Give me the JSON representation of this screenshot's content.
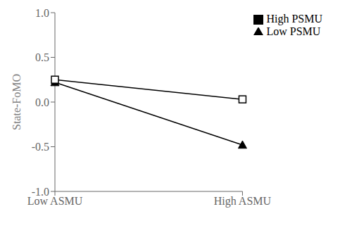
{
  "chart_data": {
    "type": "line",
    "categories": [
      "Low ASMU",
      "High ASMU"
    ],
    "series": [
      {
        "name": "Low PSMU",
        "color": "#000000",
        "marker": "triangle",
        "values": [
          0.22,
          -0.48
        ]
      },
      {
        "name": "High PSMU",
        "color": "#000000",
        "marker": "square",
        "values": [
          0.25,
          0.03
        ]
      }
    ],
    "ylabel": "State-FoMO",
    "ylim": [
      -1.0,
      1.0
    ],
    "yticks": [
      {
        "value": -1.0,
        "label": "-1.0"
      },
      -0.5,
      {
        "value": 0.0,
        "label": "0.0"
      },
      0.5,
      {
        "value": 1.0,
        "label": "1.0"
      }
    ],
    "grid": false,
    "legend": "upper right"
  }
}
